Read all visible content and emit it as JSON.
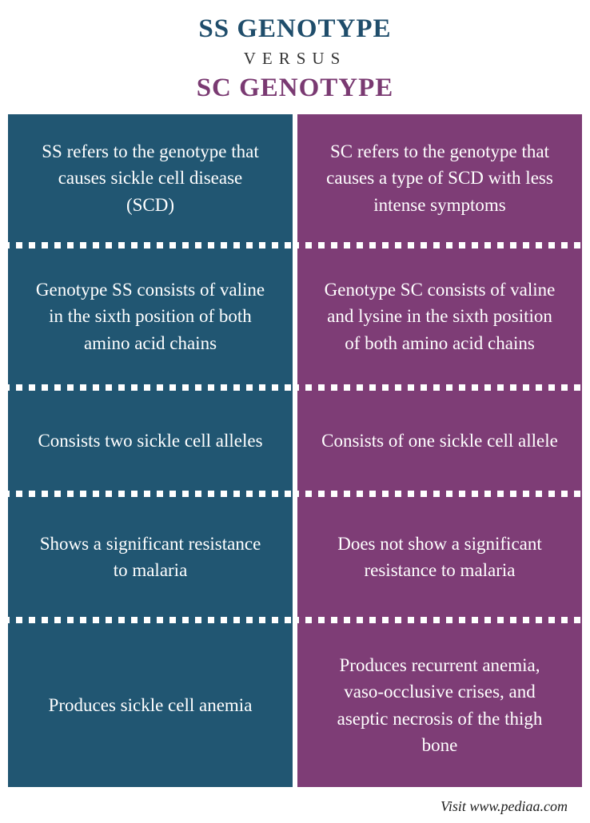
{
  "header": {
    "title_left": "SS GENOTYPE",
    "versus": "VERSUS",
    "title_right": "SC GENOTYPE",
    "title_left_color": "#1f4d6b",
    "title_right_color": "#7a3a72",
    "versus_color": "#333333"
  },
  "columns": {
    "left": {
      "bg_color": "#215672",
      "text_color": "#ffffff",
      "divider_dot_color": "#ffffff",
      "cells": [
        "SS refers to the genotype that causes sickle cell disease (SCD)",
        "Genotype SS consists of valine in the sixth position of both amino acid chains",
        "Consists two sickle cell alleles",
        "Shows a significant resistance to malaria",
        "Produces sickle cell anemia"
      ]
    },
    "right": {
      "bg_color": "#7e3d76",
      "text_color": "#ffffff",
      "divider_dot_color": "#ffffff",
      "cells": [
        "SC refers to the genotype that causes a type of SCD with less intense symptoms",
        "Genotype SC consists of valine and lysine in the sixth position of both amino acid chains",
        "Consists of one sickle cell allele",
        "Does not show a significant resistance to malaria",
        "Produces recurrent anemia, vaso-occlusive crises, and aseptic necrosis of the thigh bone"
      ]
    }
  },
  "layout": {
    "cell_min_heights": [
      160,
      170,
      125,
      150,
      205
    ],
    "cell_font_size": 23,
    "divider_height": 8,
    "dot_size": 8,
    "dot_gap": 16
  },
  "footer": {
    "text": "Visit www.pediaa.com",
    "color": "#222222"
  }
}
